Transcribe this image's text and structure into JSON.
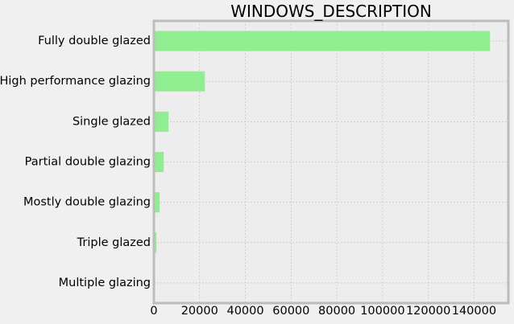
{
  "chart_data": {
    "type": "bar",
    "orientation": "horizontal",
    "title": "WINDOWS_DESCRIPTION",
    "xlabel": "",
    "ylabel": "",
    "categories": [
      "Fully double glazed",
      "High performance glazing",
      "Single glazed",
      "Partial double glazing",
      "Mostly double glazing",
      "Triple glazed",
      "Multiple glazing"
    ],
    "values": [
      147000,
      22300,
      6400,
      4300,
      2500,
      1100,
      80
    ],
    "xlim": [
      0,
      155000
    ],
    "xticks": [
      0,
      20000,
      40000,
      60000,
      80000,
      100000,
      120000,
      140000
    ],
    "xtick_labels": [
      "0",
      "20000",
      "40000",
      "60000",
      "80000",
      "100000",
      "120000",
      "140000"
    ],
    "grid": true,
    "legend": "none",
    "colors": {
      "bar": "#90ee90",
      "plot_background": "#ededed",
      "figure_background": "#f0f0f0",
      "grid": "#c8c8c8",
      "frame": "#bcbcbc"
    }
  }
}
